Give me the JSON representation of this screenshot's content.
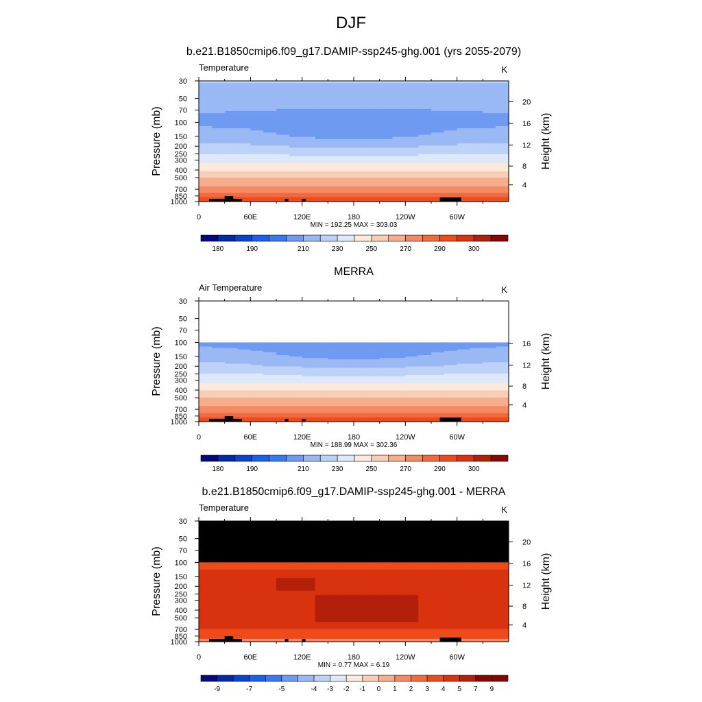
{
  "figure": {
    "title": "DJF"
  },
  "colors": {
    "palette": [
      "#000a7a",
      "#0229a8",
      "#0944d1",
      "#1c5ef0",
      "#3a78f2",
      "#6f9af2",
      "#9ab8f4",
      "#bcd2f7",
      "#dde8fa",
      "#fbeadb",
      "#f8cdb5",
      "#f6ad8c",
      "#f38a63",
      "#f16a3f",
      "#ef4a1c",
      "#d8330e",
      "#b3200a",
      "#850604"
    ],
    "missing": "#000000",
    "panel_bg": "#ffffff"
  },
  "chart_data": [
    {
      "type": "heatmap",
      "title": "b.e21.B1850cmip6.f09_g17.DAMIP-ssp245-ghg.001 (yrs 2055-2079)",
      "left_label": "Temperature",
      "units": "K",
      "ylabel": "Pressure (mb)",
      "ylabel_right": "Height (km)",
      "x_ticks": [
        "0",
        "60E",
        "120E",
        "180",
        "120W",
        "60W"
      ],
      "x_tick_lon": [
        0,
        60,
        120,
        180,
        240,
        300
      ],
      "xlim": [
        0,
        360
      ],
      "y_ticks": [
        "30",
        "50",
        "70",
        "100",
        "150",
        "200",
        "250",
        "300",
        "400",
        "500",
        "700",
        "850",
        "1000"
      ],
      "y_tick_p": [
        30,
        50,
        70,
        100,
        150,
        200,
        250,
        300,
        400,
        500,
        700,
        850,
        1000
      ],
      "ylim": [
        1000,
        30
      ],
      "y_scale": "log",
      "right_ticks": [
        "4",
        "8",
        "12",
        "16",
        "20"
      ],
      "right_tick_p": [
        616,
        356,
        194,
        103,
        55
      ],
      "data_top_p": 30,
      "profile_p": [
        30,
        50,
        70,
        100,
        150,
        200,
        250,
        300,
        400,
        500,
        700,
        850,
        1000
      ],
      "profile_t": [
        221,
        214,
        210,
        205,
        211,
        220,
        229,
        236,
        249,
        260,
        275,
        283,
        290
      ],
      "zonal_contrast": 12,
      "features": [],
      "stats": "MIN = 192.25  MAX = 303.03",
      "colorbar": {
        "levels": [
          175,
          180,
          185,
          190,
          195,
          200,
          210,
          220,
          230,
          240,
          250,
          260,
          270,
          280,
          285,
          290,
          295,
          300
        ],
        "labels": [
          "180",
          "190",
          "210",
          "230",
          "250",
          "270",
          "290",
          "300"
        ],
        "label_edges": [
          1,
          3,
          6,
          8,
          10,
          12,
          14,
          16
        ]
      }
    },
    {
      "type": "heatmap",
      "title": "MERRA",
      "left_label": "Air Temperature",
      "units": "K",
      "ylabel": "Pressure (mb)",
      "ylabel_right": "Height (km)",
      "x_ticks": [
        "0",
        "60E",
        "120E",
        "180",
        "120W",
        "60W"
      ],
      "x_tick_lon": [
        0,
        60,
        120,
        180,
        240,
        300
      ],
      "xlim": [
        0,
        360
      ],
      "y_ticks": [
        "30",
        "50",
        "70",
        "100",
        "150",
        "200",
        "250",
        "300",
        "400",
        "500",
        "700",
        "850",
        "1000"
      ],
      "y_tick_p": [
        30,
        50,
        70,
        100,
        150,
        200,
        250,
        300,
        400,
        500,
        700,
        850,
        1000
      ],
      "ylim": [
        1000,
        30
      ],
      "y_scale": "log",
      "right_ticks": [
        "4",
        "8",
        "12",
        "16"
      ],
      "right_tick_p": [
        616,
        356,
        194,
        103
      ],
      "data_top_p": 100,
      "profile_p": [
        100,
        150,
        200,
        250,
        300,
        400,
        500,
        700,
        850,
        1000
      ],
      "profile_t": [
        205,
        211,
        220,
        229,
        236,
        249,
        260,
        275,
        283,
        289
      ],
      "zonal_contrast": 12,
      "features": [],
      "stats": "MIN = 188.99  MAX = 302.36",
      "colorbar": {
        "levels": [
          175,
          180,
          185,
          190,
          195,
          200,
          210,
          220,
          230,
          240,
          250,
          260,
          270,
          280,
          285,
          290,
          295,
          300
        ],
        "labels": [
          "180",
          "190",
          "210",
          "230",
          "250",
          "270",
          "290",
          "300"
        ],
        "label_edges": [
          1,
          3,
          6,
          8,
          10,
          12,
          14,
          16
        ]
      }
    },
    {
      "type": "heatmap",
      "title": "b.e21.B1850cmip6.f09_g17.DAMIP-ssp245-ghg.001 - MERRA",
      "left_label": "Temperature",
      "units": "K",
      "ylabel": "Pressure (mb)",
      "ylabel_right": "Height (km)",
      "x_ticks": [
        "0",
        "60E",
        "120E",
        "180",
        "120W",
        "60W"
      ],
      "x_tick_lon": [
        0,
        60,
        120,
        180,
        240,
        300
      ],
      "xlim": [
        0,
        360
      ],
      "y_ticks": [
        "30",
        "50",
        "70",
        "100",
        "150",
        "200",
        "250",
        "300",
        "400",
        "500",
        "700",
        "850",
        "1000"
      ],
      "y_tick_p": [
        30,
        50,
        70,
        100,
        150,
        200,
        250,
        300,
        400,
        500,
        700,
        850,
        1000
      ],
      "ylim": [
        1000,
        30
      ],
      "y_scale": "log",
      "right_ticks": [
        "4",
        "8",
        "12",
        "16",
        "20"
      ],
      "right_tick_p": [
        616,
        356,
        194,
        103,
        55
      ],
      "data_top_p": 100,
      "profile_p": [
        100,
        150,
        200,
        300,
        400,
        500,
        700,
        850,
        1000
      ],
      "profile_t": [
        4.5,
        4.5,
        4.6,
        4.6,
        4.6,
        4.5,
        4.3,
        3.6,
        2.0
      ],
      "zonal_contrast": 0,
      "features": [
        {
          "lon": [
            130,
            250
          ],
          "p": [
            260,
            560
          ],
          "value": 5.5
        },
        {
          "lon": [
            95,
            140
          ],
          "p": [
            160,
            230
          ],
          "value": 5.5
        },
        {
          "lon": [
            0,
            360
          ],
          "p": [
            100,
            125
          ],
          "value": 3.5
        },
        {
          "lon": [
            0,
            360
          ],
          "p": [
            680,
            900
          ],
          "value": 3.5
        },
        {
          "lon": [
            0,
            360
          ],
          "p": [
            930,
            1000
          ],
          "value": 1.5
        }
      ],
      "stats": "MIN =   0.77  MAX =   6.19",
      "colorbar": {
        "levels": [
          -11,
          -9,
          -8,
          -7,
          -6,
          -5,
          -4.5,
          -4,
          -3,
          -2,
          -1,
          0,
          1,
          2,
          3,
          4,
          5,
          7,
          9
        ],
        "labels": [
          "-9",
          "-7",
          "-5",
          "-4",
          "-3",
          "-2",
          "-1",
          "0",
          "1",
          "2",
          "3",
          "4",
          "5",
          "7",
          "9"
        ],
        "label_edges": [
          1,
          3,
          5,
          7,
          8,
          9,
          10,
          11,
          12,
          13,
          14,
          15,
          16,
          17,
          18
        ]
      }
    }
  ]
}
